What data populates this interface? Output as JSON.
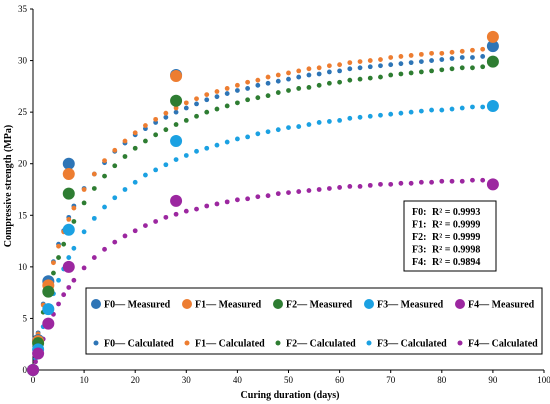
{
  "chart_data": {
    "type": "scatter",
    "xlabel": "Curing duration (days)",
    "ylabel": "Compressive strength (MPa)",
    "xlim": [
      0,
      100
    ],
    "ylim": [
      0,
      35
    ],
    "xticks": [
      0,
      10,
      20,
      30,
      40,
      50,
      60,
      70,
      80,
      90,
      100
    ],
    "yticks": [
      0,
      5,
      10,
      15,
      20,
      25,
      30,
      35
    ],
    "grid": false,
    "legend_position": "bottom-right",
    "series": [
      {
        "name": "F0— Measured",
        "kind": "measured",
        "color": "#2e75b6",
        "x": [
          0,
          1,
          3,
          7,
          28,
          90
        ],
        "y": [
          0,
          2.9,
          8.6,
          20.0,
          28.6,
          31.4
        ]
      },
      {
        "name": "F1— Measured",
        "kind": "measured",
        "color": "#ed7d31",
        "x": [
          0,
          1,
          3,
          7,
          28,
          90
        ],
        "y": [
          0,
          2.8,
          8.2,
          19.0,
          28.5,
          32.3
        ]
      },
      {
        "name": "F2— Measured",
        "kind": "measured",
        "color": "#2e7d32",
        "x": [
          0,
          1,
          3,
          7,
          28,
          90
        ],
        "y": [
          0,
          2.6,
          7.6,
          17.1,
          26.1,
          29.9
        ]
      },
      {
        "name": "F3— Measured",
        "kind": "measured",
        "color": "#1ba1e2",
        "x": [
          0,
          1,
          3,
          7,
          28,
          90
        ],
        "y": [
          0,
          2.0,
          5.9,
          13.6,
          22.2,
          25.6
        ]
      },
      {
        "name": "F4— Measured",
        "kind": "measured",
        "color": "#9c27a0",
        "x": [
          0,
          1,
          3,
          7,
          28,
          90
        ],
        "y": [
          0,
          1.6,
          4.5,
          10.0,
          16.4,
          18.0
        ]
      },
      {
        "name": "F0— Calculated",
        "kind": "calculated",
        "color": "#2e75b6",
        "x": [
          0.5,
          1,
          2,
          3,
          4,
          5,
          6,
          7,
          8,
          10,
          12,
          14,
          16,
          18,
          20,
          22,
          24,
          26,
          28,
          30,
          32,
          34,
          36,
          38,
          40,
          42,
          44,
          46,
          48,
          50,
          52,
          54,
          56,
          58,
          60,
          62,
          64,
          66,
          68,
          70,
          72,
          74,
          76,
          78,
          80,
          82,
          84,
          86,
          88,
          90
        ],
        "y": [
          1.9,
          3.6,
          6.4,
          8.6,
          10.5,
          12.2,
          13.5,
          14.8,
          15.9,
          17.6,
          19.0,
          20.1,
          21.2,
          22.0,
          22.8,
          23.4,
          24.0,
          24.5,
          25.0,
          25.4,
          25.8,
          26.2,
          26.5,
          26.8,
          27.1,
          27.3,
          27.6,
          27.8,
          28.0,
          28.2,
          28.4,
          28.6,
          28.7,
          28.9,
          29.0,
          29.2,
          29.3,
          29.4,
          29.5,
          29.6,
          29.7,
          29.8,
          29.9,
          30.0,
          30.1,
          30.2,
          30.3,
          30.3,
          30.4,
          31.2
        ]
      },
      {
        "name": "F1— Calculated",
        "kind": "calculated",
        "color": "#ed7d31",
        "x": [
          0.5,
          1,
          2,
          3,
          4,
          5,
          6,
          7,
          8,
          10,
          12,
          14,
          16,
          18,
          20,
          22,
          24,
          26,
          28,
          30,
          32,
          34,
          36,
          38,
          40,
          42,
          44,
          46,
          48,
          50,
          52,
          54,
          56,
          58,
          60,
          62,
          64,
          66,
          68,
          70,
          72,
          74,
          76,
          78,
          80,
          82,
          84,
          86,
          88,
          90
        ],
        "y": [
          1.8,
          3.5,
          6.3,
          8.5,
          10.4,
          12.0,
          13.4,
          14.6,
          15.7,
          17.5,
          19.0,
          20.3,
          21.3,
          22.2,
          23.0,
          23.7,
          24.3,
          24.9,
          25.4,
          25.9,
          26.3,
          26.7,
          27.0,
          27.3,
          27.6,
          27.9,
          28.1,
          28.4,
          28.6,
          28.8,
          29.0,
          29.2,
          29.3,
          29.5,
          29.6,
          29.8,
          29.9,
          30.0,
          30.1,
          30.3,
          30.4,
          30.5,
          30.6,
          30.7,
          30.7,
          30.8,
          30.9,
          31.0,
          31.1,
          32.0
        ]
      },
      {
        "name": "F2— Calculated",
        "kind": "calculated",
        "color": "#2e7d32",
        "x": [
          0.5,
          1,
          2,
          3,
          4,
          5,
          6,
          7,
          8,
          10,
          12,
          14,
          16,
          18,
          20,
          22,
          24,
          26,
          28,
          30,
          32,
          34,
          36,
          38,
          40,
          42,
          44,
          46,
          48,
          50,
          52,
          54,
          56,
          58,
          60,
          62,
          64,
          66,
          68,
          70,
          72,
          74,
          76,
          78,
          80,
          82,
          84,
          86,
          88,
          90
        ],
        "y": [
          1.5,
          3.0,
          5.6,
          7.7,
          9.4,
          10.9,
          12.2,
          13.4,
          14.4,
          16.2,
          17.6,
          18.8,
          19.8,
          20.7,
          21.5,
          22.2,
          22.8,
          23.3,
          23.8,
          24.2,
          24.6,
          25.0,
          25.3,
          25.6,
          25.9,
          26.2,
          26.4,
          26.6,
          26.9,
          27.1,
          27.3,
          27.4,
          27.6,
          27.8,
          27.9,
          28.1,
          28.2,
          28.3,
          28.4,
          28.6,
          28.7,
          28.8,
          28.9,
          29.0,
          29.1,
          29.2,
          29.3,
          29.3,
          29.4,
          29.8
        ]
      },
      {
        "name": "F3— Calculated",
        "kind": "calculated",
        "color": "#1ba1e2",
        "x": [
          0.5,
          1,
          2,
          3,
          4,
          5,
          6,
          7,
          8,
          10,
          12,
          14,
          16,
          18,
          20,
          22,
          24,
          26,
          28,
          30,
          32,
          34,
          36,
          38,
          40,
          42,
          44,
          46,
          48,
          50,
          52,
          54,
          56,
          58,
          60,
          62,
          64,
          66,
          68,
          70,
          72,
          74,
          76,
          78,
          80,
          82,
          84,
          86,
          88,
          90
        ],
        "y": [
          1.1,
          2.2,
          4.2,
          5.9,
          7.4,
          8.7,
          9.8,
          10.9,
          11.8,
          13.4,
          14.7,
          15.8,
          16.7,
          17.5,
          18.2,
          18.9,
          19.4,
          19.9,
          20.4,
          20.8,
          21.2,
          21.5,
          21.8,
          22.1,
          22.4,
          22.6,
          22.9,
          23.1,
          23.3,
          23.5,
          23.6,
          23.8,
          24.0,
          24.1,
          24.2,
          24.4,
          24.5,
          24.6,
          24.7,
          24.8,
          24.9,
          25.0,
          25.1,
          25.2,
          25.2,
          25.3,
          25.4,
          25.5,
          25.5,
          25.6
        ]
      },
      {
        "name": "F4— Calculated",
        "kind": "calculated",
        "color": "#9c27a0",
        "x": [
          0.5,
          1,
          2,
          3,
          4,
          5,
          6,
          7,
          8,
          10,
          12,
          14,
          16,
          18,
          20,
          22,
          24,
          26,
          28,
          30,
          32,
          34,
          36,
          38,
          40,
          42,
          44,
          46,
          48,
          50,
          52,
          54,
          56,
          58,
          60,
          62,
          64,
          66,
          68,
          70,
          72,
          74,
          76,
          78,
          80,
          82,
          84,
          86,
          88,
          90
        ],
        "y": [
          0.8,
          1.6,
          3.0,
          4.3,
          5.4,
          6.4,
          7.3,
          8.0,
          8.7,
          9.9,
          10.9,
          11.7,
          12.4,
          13.0,
          13.5,
          14.0,
          14.4,
          14.8,
          15.1,
          15.4,
          15.6,
          15.9,
          16.1,
          16.3,
          16.5,
          16.6,
          16.8,
          16.9,
          17.1,
          17.2,
          17.3,
          17.4,
          17.5,
          17.6,
          17.7,
          17.8,
          17.8,
          17.9,
          18.0,
          18.0,
          18.1,
          18.1,
          18.2,
          18.2,
          18.3,
          18.3,
          18.3,
          18.4,
          18.4,
          18.3
        ]
      }
    ],
    "r2_annotations": [
      {
        "label": "F0:",
        "text": "R² =  0.9993"
      },
      {
        "label": "F1:",
        "text": "R² =  0.9999"
      },
      {
        "label": "F2:",
        "text": "R² =  0.9999"
      },
      {
        "label": "F3:",
        "text": "R² =  0.9998"
      },
      {
        "label": "F4:",
        "text": "R² =  0.9894"
      }
    ]
  }
}
